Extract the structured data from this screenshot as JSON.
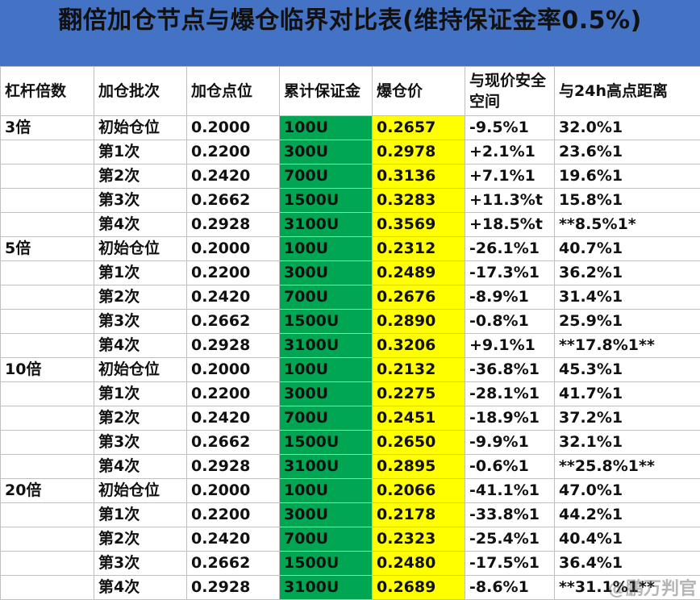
{
  "title": "翻倍加仓节点与爆仓临界对比表(维持保证金率0.5%)",
  "headers": [
    "杠杆倍数",
    "加仓批次",
    "加仓点位",
    "累计保证金",
    "爆仓价",
    "与现价安全空间",
    "与24h高点距离"
  ],
  "rows": [
    [
      "3倍",
      "初始仓位",
      "0.2000",
      "100U",
      "0.2657",
      "-9.5%1",
      "32.0%1"
    ],
    [
      "",
      "第1次",
      "0.2200",
      "300U",
      "0.2978",
      "+2.1%1",
      "23.6%1"
    ],
    [
      "",
      "第2次",
      "0.2420",
      "700U",
      "0.3136",
      "+7.1%1",
      "19.6%1"
    ],
    [
      "",
      "第3次",
      "0.2662",
      "1500U",
      "0.3283",
      "+11.3%t",
      "15.8%1"
    ],
    [
      "",
      "第4次",
      "0.2928",
      "3100U",
      "0.3569",
      "+18.5%t",
      "**8.5%1*"
    ],
    [
      "5倍",
      "初始仓位",
      "0.2000",
      "100U",
      "0.2312",
      "-26.1%1",
      "40.7%1"
    ],
    [
      "",
      "第1次",
      "0.2200",
      "300U",
      "0.2489",
      "-17.3%1",
      "36.2%1"
    ],
    [
      "",
      "第2次",
      "0.2420",
      "700U",
      "0.2676",
      "-8.9%1",
      "31.4%1"
    ],
    [
      "",
      "第3次",
      "0.2662",
      "1500U",
      "0.2890",
      "-0.8%1",
      "25.9%1"
    ],
    [
      "",
      "第4次",
      "0.2928",
      "3100U",
      "0.3206",
      "+9.1%1",
      "**17.8%1**"
    ],
    [
      "10倍",
      "初始仓位",
      "0.2000",
      "100U",
      "0.2132",
      "-36.8%1",
      "45.3%1"
    ],
    [
      "",
      "第1次",
      "0.2200",
      "300U",
      "0.2275",
      "-28.1%1",
      "41.7%1"
    ],
    [
      "",
      "第2次",
      "0.2420",
      "700U",
      "0.2451",
      "-18.9%1",
      "37.2%1"
    ],
    [
      "",
      "第3次",
      "0.2662",
      "1500U",
      "0.2650",
      "-9.9%1",
      "32.1%1"
    ],
    [
      "",
      "第4次",
      "0.2928",
      "3100U",
      "0.2895",
      "-0.6%1",
      "**25.8%1**"
    ],
    [
      "20倍",
      "初始仓位",
      "0.2000",
      "100U",
      "0.2066",
      "-41.1%1",
      "47.0%1"
    ],
    [
      "",
      "第1次",
      "0.2200",
      "300U",
      "0.2178",
      "-33.8%1",
      "44.2%1"
    ],
    [
      "",
      "第2次",
      "0.2420",
      "700U",
      "0.2323",
      "-25.4%1",
      "40.4%1"
    ],
    [
      "",
      "第3次",
      "0.2662",
      "1500U",
      "0.2480",
      "-17.5%1",
      "36.4%1"
    ],
    [
      "",
      "第4次",
      "0.2928",
      "3100U",
      "0.2689",
      "-8.6%1",
      "**31.1%1**"
    ]
  ],
  "watermark": "@鹏万判官",
  "colors": {
    "header_bg": "#4472C4",
    "margin_bg": "#00A651",
    "liq_bg": "#FFFF00",
    "red_text": "#C00000"
  }
}
